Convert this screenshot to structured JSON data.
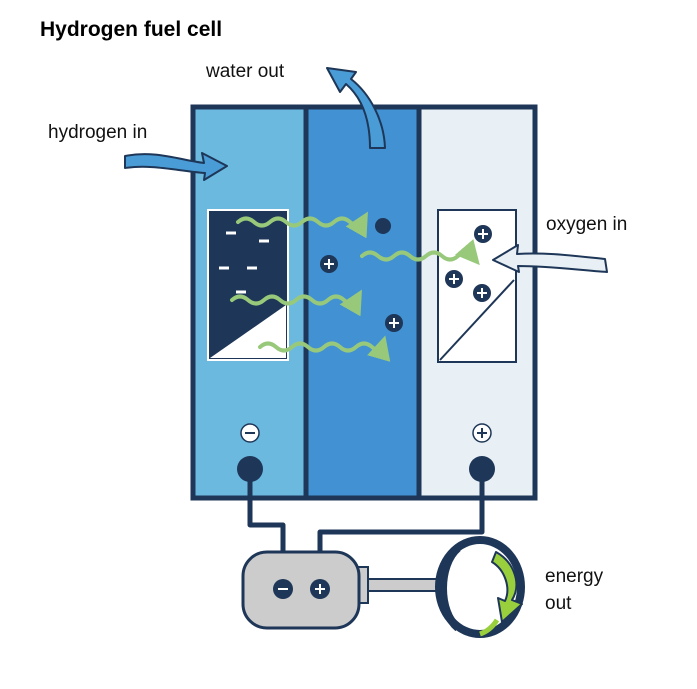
{
  "diagram": {
    "title": "Hydrogen fuel cell",
    "labels": {
      "water_out": "water out",
      "hydrogen_in": "hydrogen in",
      "oxygen_in": "oxygen in",
      "energy_line1": "energy",
      "energy_line2": "out"
    },
    "terminal_symbols": {
      "negative": "⊖",
      "positive": "⊕"
    },
    "colors": {
      "outline": "#1e3657",
      "anode": "#6cb9e0",
      "electrolyte": "#4292d3",
      "cathode": "#e8f0f5",
      "arrow_fill": "#4a9cd6",
      "wave": "#98c97b",
      "motor": "#cccccc",
      "wheel_arrow": "#99cf3c"
    }
  }
}
